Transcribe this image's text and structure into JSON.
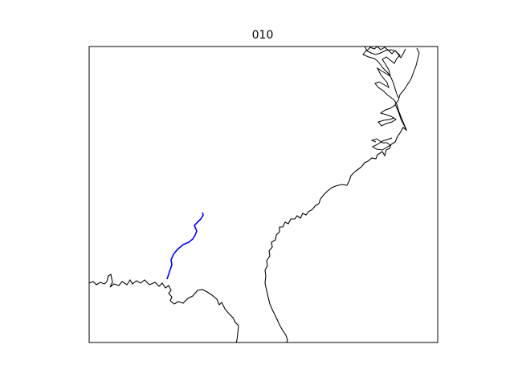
{
  "figure": {
    "title": "010"
  },
  "map": {
    "coastline_color": "#000000",
    "track_color": "#0000ff",
    "frame_color": "#000000"
  }
}
